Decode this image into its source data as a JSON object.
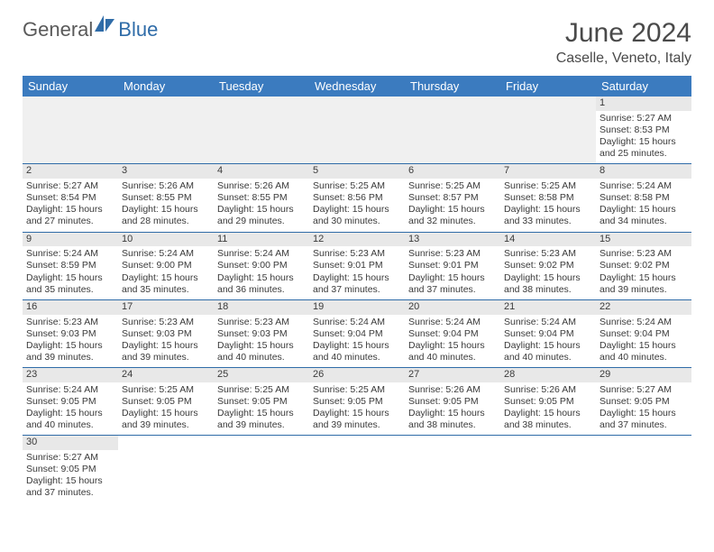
{
  "logo": {
    "general": "General",
    "blue": "Blue"
  },
  "title": "June 2024",
  "location": "Caselle, Veneto, Italy",
  "dayNames": [
    "Sunday",
    "Monday",
    "Tuesday",
    "Wednesday",
    "Thursday",
    "Friday",
    "Saturday"
  ],
  "colors": {
    "header_bg": "#3b7bbf",
    "header_text": "#ffffff",
    "rule": "#2f6ca8",
    "daynum_bg": "#e8e8e8",
    "text": "#3a3a3a",
    "logo_gray": "#5a5a5a",
    "logo_blue": "#2f6ca8"
  },
  "weeks": [
    [
      null,
      null,
      null,
      null,
      null,
      null,
      {
        "n": "1",
        "sr": "Sunrise: 5:27 AM",
        "ss": "Sunset: 8:53 PM",
        "d1": "Daylight: 15 hours",
        "d2": "and 25 minutes."
      }
    ],
    [
      {
        "n": "2",
        "sr": "Sunrise: 5:27 AM",
        "ss": "Sunset: 8:54 PM",
        "d1": "Daylight: 15 hours",
        "d2": "and 27 minutes."
      },
      {
        "n": "3",
        "sr": "Sunrise: 5:26 AM",
        "ss": "Sunset: 8:55 PM",
        "d1": "Daylight: 15 hours",
        "d2": "and 28 minutes."
      },
      {
        "n": "4",
        "sr": "Sunrise: 5:26 AM",
        "ss": "Sunset: 8:55 PM",
        "d1": "Daylight: 15 hours",
        "d2": "and 29 minutes."
      },
      {
        "n": "5",
        "sr": "Sunrise: 5:25 AM",
        "ss": "Sunset: 8:56 PM",
        "d1": "Daylight: 15 hours",
        "d2": "and 30 minutes."
      },
      {
        "n": "6",
        "sr": "Sunrise: 5:25 AM",
        "ss": "Sunset: 8:57 PM",
        "d1": "Daylight: 15 hours",
        "d2": "and 32 minutes."
      },
      {
        "n": "7",
        "sr": "Sunrise: 5:25 AM",
        "ss": "Sunset: 8:58 PM",
        "d1": "Daylight: 15 hours",
        "d2": "and 33 minutes."
      },
      {
        "n": "8",
        "sr": "Sunrise: 5:24 AM",
        "ss": "Sunset: 8:58 PM",
        "d1": "Daylight: 15 hours",
        "d2": "and 34 minutes."
      }
    ],
    [
      {
        "n": "9",
        "sr": "Sunrise: 5:24 AM",
        "ss": "Sunset: 8:59 PM",
        "d1": "Daylight: 15 hours",
        "d2": "and 35 minutes."
      },
      {
        "n": "10",
        "sr": "Sunrise: 5:24 AM",
        "ss": "Sunset: 9:00 PM",
        "d1": "Daylight: 15 hours",
        "d2": "and 35 minutes."
      },
      {
        "n": "11",
        "sr": "Sunrise: 5:24 AM",
        "ss": "Sunset: 9:00 PM",
        "d1": "Daylight: 15 hours",
        "d2": "and 36 minutes."
      },
      {
        "n": "12",
        "sr": "Sunrise: 5:23 AM",
        "ss": "Sunset: 9:01 PM",
        "d1": "Daylight: 15 hours",
        "d2": "and 37 minutes."
      },
      {
        "n": "13",
        "sr": "Sunrise: 5:23 AM",
        "ss": "Sunset: 9:01 PM",
        "d1": "Daylight: 15 hours",
        "d2": "and 37 minutes."
      },
      {
        "n": "14",
        "sr": "Sunrise: 5:23 AM",
        "ss": "Sunset: 9:02 PM",
        "d1": "Daylight: 15 hours",
        "d2": "and 38 minutes."
      },
      {
        "n": "15",
        "sr": "Sunrise: 5:23 AM",
        "ss": "Sunset: 9:02 PM",
        "d1": "Daylight: 15 hours",
        "d2": "and 39 minutes."
      }
    ],
    [
      {
        "n": "16",
        "sr": "Sunrise: 5:23 AM",
        "ss": "Sunset: 9:03 PM",
        "d1": "Daylight: 15 hours",
        "d2": "and 39 minutes."
      },
      {
        "n": "17",
        "sr": "Sunrise: 5:23 AM",
        "ss": "Sunset: 9:03 PM",
        "d1": "Daylight: 15 hours",
        "d2": "and 39 minutes."
      },
      {
        "n": "18",
        "sr": "Sunrise: 5:23 AM",
        "ss": "Sunset: 9:03 PM",
        "d1": "Daylight: 15 hours",
        "d2": "and 40 minutes."
      },
      {
        "n": "19",
        "sr": "Sunrise: 5:24 AM",
        "ss": "Sunset: 9:04 PM",
        "d1": "Daylight: 15 hours",
        "d2": "and 40 minutes."
      },
      {
        "n": "20",
        "sr": "Sunrise: 5:24 AM",
        "ss": "Sunset: 9:04 PM",
        "d1": "Daylight: 15 hours",
        "d2": "and 40 minutes."
      },
      {
        "n": "21",
        "sr": "Sunrise: 5:24 AM",
        "ss": "Sunset: 9:04 PM",
        "d1": "Daylight: 15 hours",
        "d2": "and 40 minutes."
      },
      {
        "n": "22",
        "sr": "Sunrise: 5:24 AM",
        "ss": "Sunset: 9:04 PM",
        "d1": "Daylight: 15 hours",
        "d2": "and 40 minutes."
      }
    ],
    [
      {
        "n": "23",
        "sr": "Sunrise: 5:24 AM",
        "ss": "Sunset: 9:05 PM",
        "d1": "Daylight: 15 hours",
        "d2": "and 40 minutes."
      },
      {
        "n": "24",
        "sr": "Sunrise: 5:25 AM",
        "ss": "Sunset: 9:05 PM",
        "d1": "Daylight: 15 hours",
        "d2": "and 39 minutes."
      },
      {
        "n": "25",
        "sr": "Sunrise: 5:25 AM",
        "ss": "Sunset: 9:05 PM",
        "d1": "Daylight: 15 hours",
        "d2": "and 39 minutes."
      },
      {
        "n": "26",
        "sr": "Sunrise: 5:25 AM",
        "ss": "Sunset: 9:05 PM",
        "d1": "Daylight: 15 hours",
        "d2": "and 39 minutes."
      },
      {
        "n": "27",
        "sr": "Sunrise: 5:26 AM",
        "ss": "Sunset: 9:05 PM",
        "d1": "Daylight: 15 hours",
        "d2": "and 38 minutes."
      },
      {
        "n": "28",
        "sr": "Sunrise: 5:26 AM",
        "ss": "Sunset: 9:05 PM",
        "d1": "Daylight: 15 hours",
        "d2": "and 38 minutes."
      },
      {
        "n": "29",
        "sr": "Sunrise: 5:27 AM",
        "ss": "Sunset: 9:05 PM",
        "d1": "Daylight: 15 hours",
        "d2": "and 37 minutes."
      }
    ],
    [
      {
        "n": "30",
        "sr": "Sunrise: 5:27 AM",
        "ss": "Sunset: 9:05 PM",
        "d1": "Daylight: 15 hours",
        "d2": "and 37 minutes."
      },
      null,
      null,
      null,
      null,
      null,
      null
    ]
  ]
}
